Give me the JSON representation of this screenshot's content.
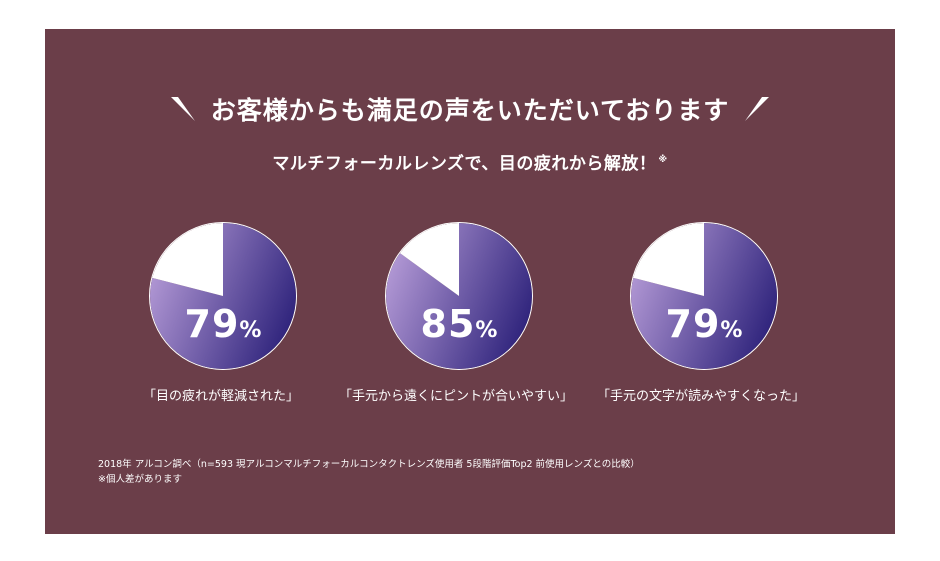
{
  "headline": "お客様からも満足の声をいただいております",
  "subheadline": "マルチフォーカルレンズで、目の疲れから解放！",
  "subheadline_mark": "※",
  "colors": {
    "background": "#6b3e49",
    "pie_light": "#b49ad6",
    "pie_dark": "#2c217a",
    "remainder": "#ffffff"
  },
  "chart_data": [
    {
      "type": "pie",
      "slices": [
        {
          "label": "「目の疲れが軽減された」",
          "value": 79
        },
        {
          "label": "",
          "value": 21
        }
      ],
      "value_label": "79",
      "unit": "%"
    },
    {
      "type": "pie",
      "slices": [
        {
          "label": "「手元から遠くにピントが合いやすい」",
          "value": 85
        },
        {
          "label": "",
          "value": 15
        }
      ],
      "value_label": "85",
      "unit": "%"
    },
    {
      "type": "pie",
      "slices": [
        {
          "label": "「手元の文字が読みやすくなった」",
          "value": 79
        },
        {
          "label": "",
          "value": 21
        }
      ],
      "value_label": "79",
      "unit": "%"
    }
  ],
  "footnote_1": "2018年 アルコン調べ（n=593 現アルコンマルチフォーカルコンタクトレンズ使用者 5段階評価Top2 前使用レンズとの比較）",
  "footnote_2": "※個人差があります"
}
